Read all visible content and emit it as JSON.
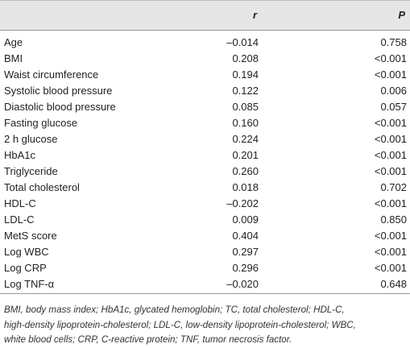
{
  "table": {
    "columns": [
      "r",
      "P"
    ],
    "rows": [
      [
        "Age",
        "–0.014",
        "0.758"
      ],
      [
        "BMI",
        "0.208",
        "<0.001"
      ],
      [
        "Waist circumference",
        "0.194",
        "<0.001"
      ],
      [
        "Systolic blood pressure",
        "0.122",
        "0.006"
      ],
      [
        "Diastolic blood pressure",
        "0.085",
        "0.057"
      ],
      [
        "Fasting glucose",
        "0.160",
        "<0.001"
      ],
      [
        "2 h glucose",
        "0.224",
        "<0.001"
      ],
      [
        "HbA1c",
        "0.201",
        "<0.001"
      ],
      [
        "Triglyceride",
        "0.260",
        "<0.001"
      ],
      [
        "Total cholesterol",
        "0.018",
        "0.702"
      ],
      [
        "HDL-C",
        "–0.202",
        "<0.001"
      ],
      [
        "LDL-C",
        "0.009",
        "0.850"
      ],
      [
        "MetS score",
        "0.404",
        "<0.001"
      ],
      [
        "Log WBC",
        "0.297",
        "<0.001"
      ],
      [
        "Log CRP",
        "0.296",
        "<0.001"
      ],
      [
        "Log TNF-α",
        "–0.020",
        "0.648"
      ]
    ],
    "footnote": [
      "BMI, body mass index; HbA1c, glycated hemoglobin; TC, total cholesterol; HDL-C,",
      "high-density lipoprotein-cholesterol; LDL-C, low-density lipoprotein-cholesterol; WBC,",
      "white blood cells; CRP, C-reactive protein; TNF, tumor necrosis factor."
    ]
  }
}
